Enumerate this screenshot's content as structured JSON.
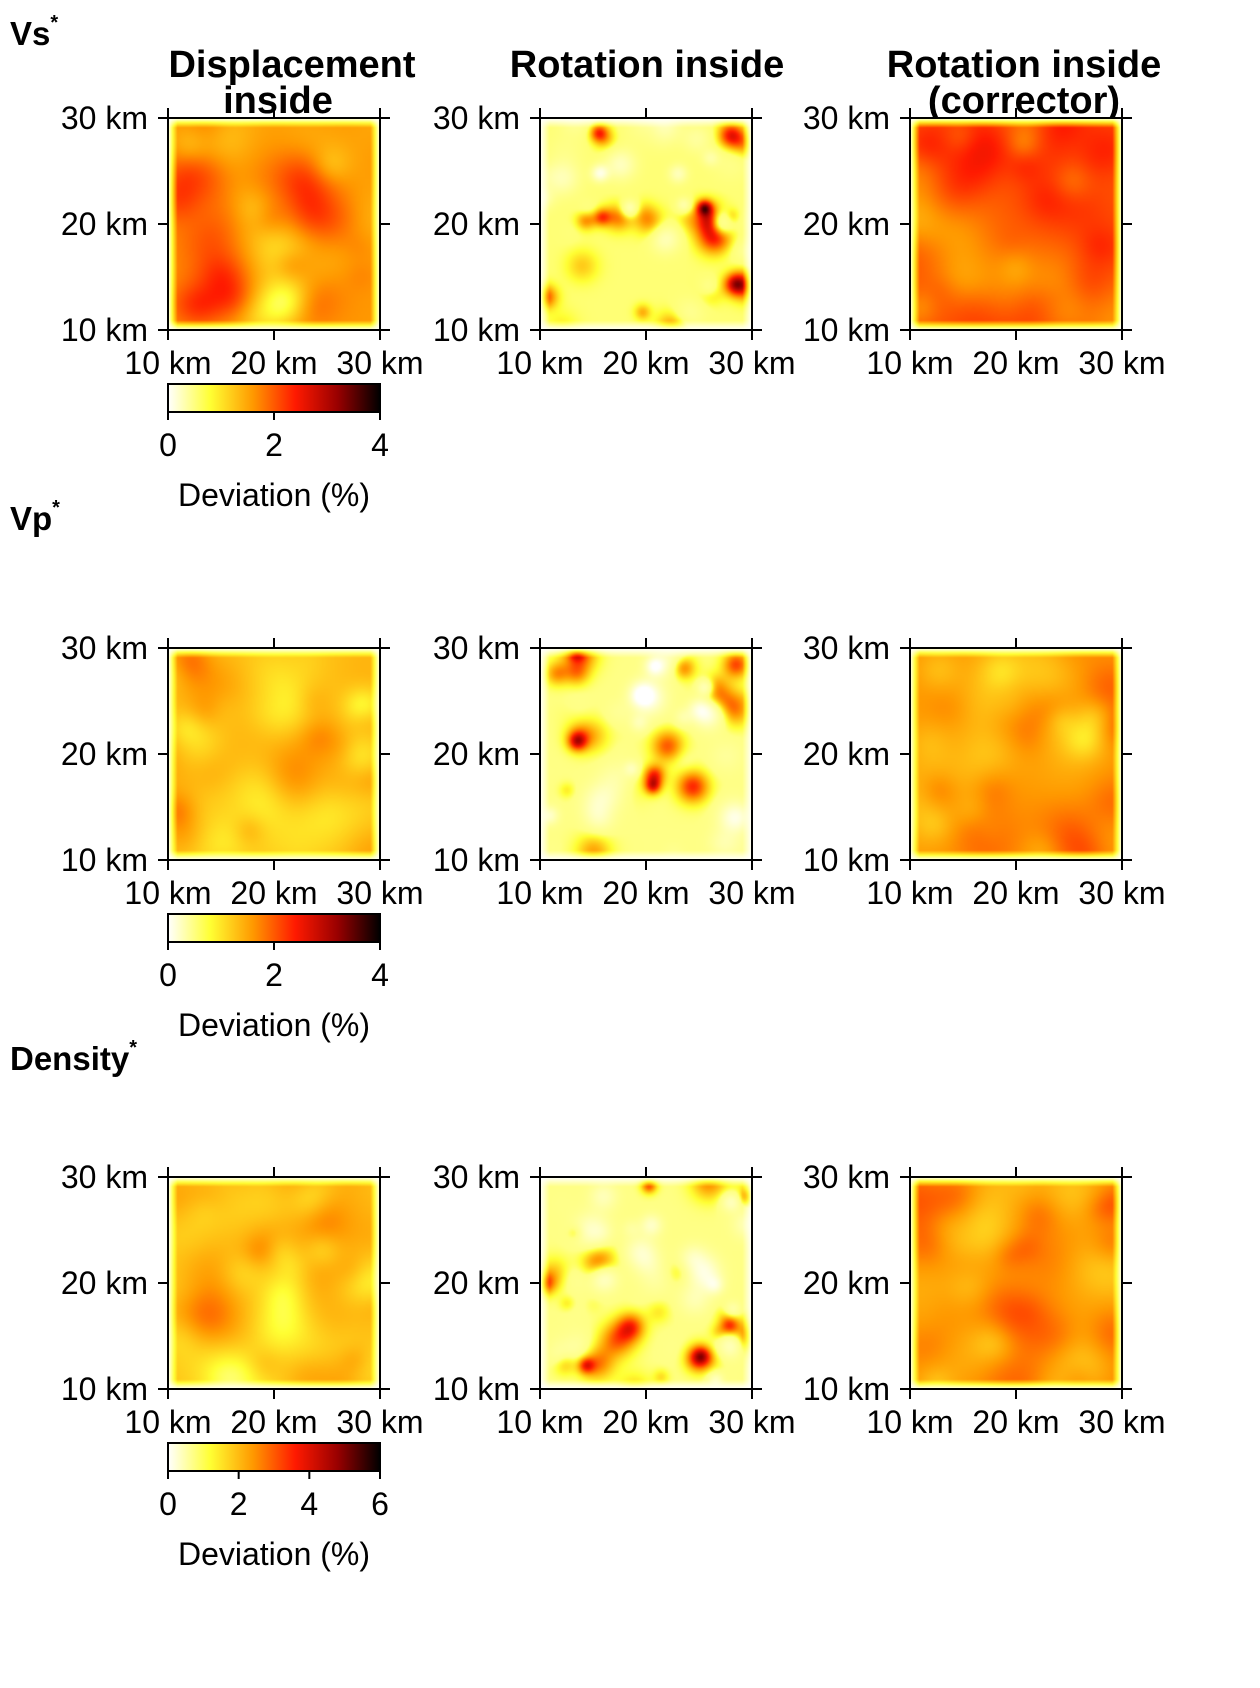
{
  "chart_data": {
    "type": "heatmap",
    "rows": [
      {
        "label": "Vs",
        "superscript": "*",
        "colorbar": {
          "ticks": [
            "0",
            "2",
            "4"
          ],
          "range": [
            0,
            4
          ],
          "label": "Deviation (%)"
        }
      },
      {
        "label": "Vp",
        "superscript": "*",
        "colorbar": {
          "ticks": [
            "0",
            "2",
            "4"
          ],
          "range": [
            0,
            4
          ],
          "label": "Deviation (%)"
        }
      },
      {
        "label": "Density",
        "superscript": "*",
        "colorbar": {
          "ticks": [
            "0",
            "2",
            "4",
            "6"
          ],
          "range": [
            0,
            6
          ],
          "label": "Deviation (%)"
        }
      }
    ],
    "columns": [
      {
        "title_lines": [
          "Displacement",
          "inside"
        ],
        "character": "smooth",
        "mean_level": [
          1.6,
          1.3,
          1.9
        ],
        "variability": [
          0.35,
          0.3,
          0.45
        ]
      },
      {
        "title_lines": [
          "Rotation inside"
        ],
        "character": "spotty",
        "mean_level": [
          0.9,
          0.8,
          1.2
        ],
        "variability": [
          1.3,
          1.25,
          1.9
        ]
      },
      {
        "title_lines": [
          "Rotation inside",
          "(corrector)"
        ],
        "character": "smooth",
        "mean_level": [
          2.0,
          1.6,
          2.4
        ],
        "variability": [
          0.35,
          0.3,
          0.45
        ]
      }
    ],
    "x_ticks": [
      "10 km",
      "20 km",
      "30 km"
    ],
    "y_ticks": [
      "30 km",
      "20 km",
      "10 km"
    ],
    "xlim_km": [
      10,
      30
    ],
    "ylim_km": [
      10,
      30
    ],
    "colormap": [
      "#ffffff",
      "#ffff33",
      "#ff9900",
      "#ff1a00",
      "#990000",
      "#000000"
    ]
  }
}
